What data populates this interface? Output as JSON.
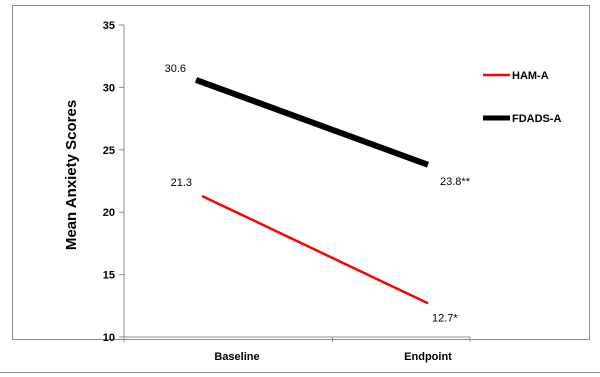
{
  "chart_data": {
    "type": "line",
    "title": "",
    "xlabel": "",
    "ylabel": "Mean Anxiety Scores",
    "categories": [
      "Baseline",
      "Endpoint"
    ],
    "ylim": [
      10,
      35
    ],
    "yticks": [
      10,
      15,
      20,
      25,
      30,
      35
    ],
    "grid": false,
    "legend_position": "right",
    "series": [
      {
        "name": "HAM-A",
        "color": "#ff0000",
        "values": [
          21.3,
          12.7
        ],
        "labels": [
          "21.3",
          "12.7*"
        ]
      },
      {
        "name": "FDADS-A",
        "color": "#000000",
        "values": [
          30.6,
          23.8
        ],
        "labels": [
          "30.6",
          "23.8**"
        ]
      }
    ]
  }
}
